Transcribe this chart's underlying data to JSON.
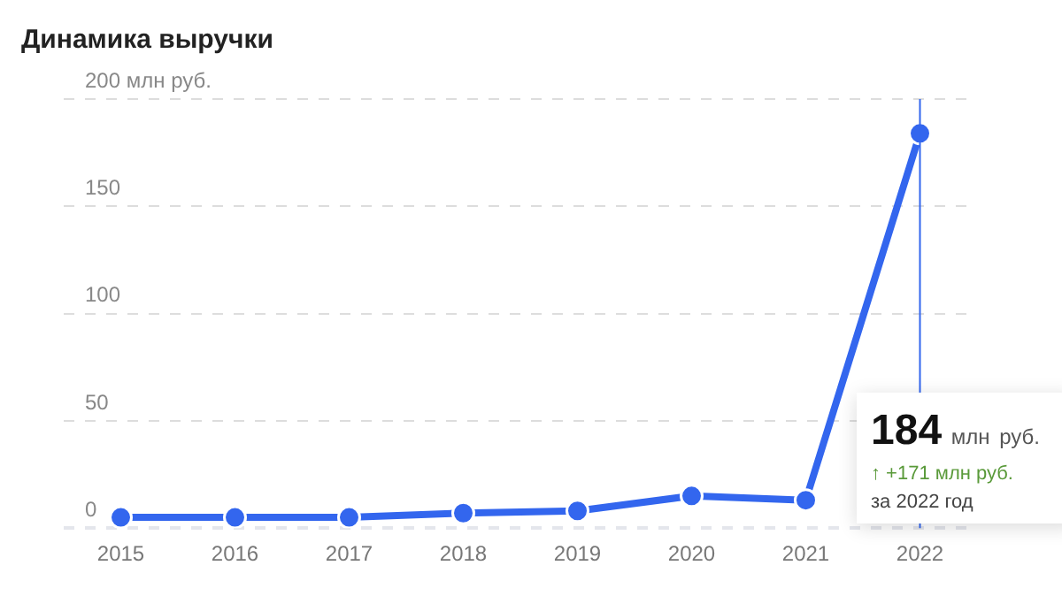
{
  "chart_data": {
    "type": "line",
    "title": "Динамика выручки",
    "categories": [
      "2015",
      "2016",
      "2017",
      "2018",
      "2019",
      "2020",
      "2021",
      "2022"
    ],
    "series": [
      {
        "color": "#3366ee",
        "values": [
          5,
          5,
          5,
          7,
          8,
          15,
          13,
          184
        ]
      }
    ],
    "ylim": [
      0,
      200
    ],
    "yticks": [
      0,
      50,
      100,
      150,
      {
        "value": 200,
        "label": "200 млн руб."
      }
    ],
    "grid": "y",
    "marker": "circle",
    "line_style": "solid",
    "legend": false,
    "ref_lines": [
      {
        "axis": "x",
        "value": "2022",
        "color": "#3366ee"
      }
    ],
    "annotations": [
      "184 млн руб.",
      "↑ +171 млн руб.",
      "за 2022 год"
    ]
  }
}
